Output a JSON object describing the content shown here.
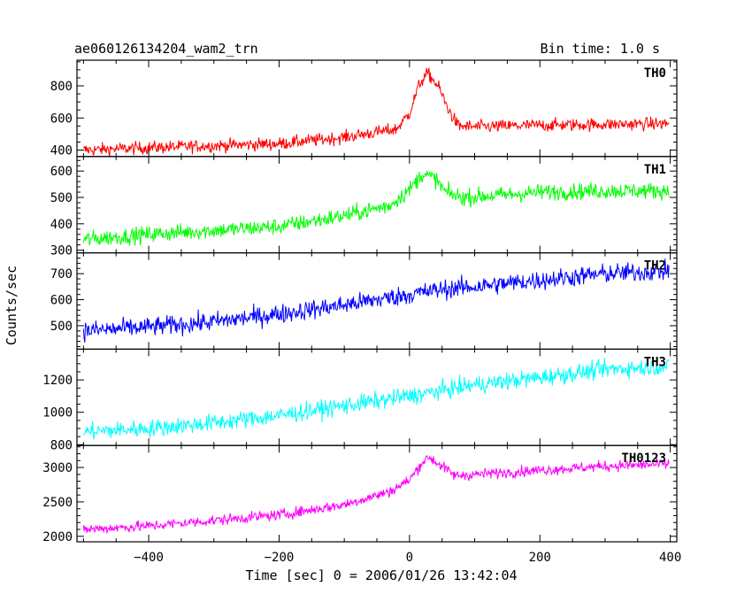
{
  "header": {
    "object_name": "ae060126134204_wam2_trn",
    "bin_time": "Bin time: 1.0 s"
  },
  "chart_data": {
    "type": "line",
    "xlabel": "Time [sec] 0 = 2006/01/26 13:42:04",
    "ylabel": "Counts/sec",
    "xlim": [
      -510,
      410
    ],
    "x_ticks": [
      -400,
      -200,
      0,
      200,
      400
    ],
    "x_tick_labels": [
      "−400",
      "−200",
      "0",
      "200",
      "400"
    ],
    "sample_step_sec": 1.0,
    "series_range": [
      -500,
      398
    ],
    "panels": [
      {
        "name": "TH0",
        "color": "#ff0000",
        "ylim": [
          360,
          960
        ],
        "y_ticks": [
          400,
          600,
          800
        ],
        "y_tick_labels": [
          "400",
          "600",
          "800"
        ],
        "noise": 28,
        "trend": [
          [
            -500,
            400
          ],
          [
            -400,
            415
          ],
          [
            -200,
            440
          ],
          [
            -100,
            480
          ],
          [
            -20,
            530
          ],
          [
            0,
            630
          ],
          [
            15,
            810
          ],
          [
            28,
            880
          ],
          [
            45,
            790
          ],
          [
            60,
            650
          ],
          [
            75,
            550
          ],
          [
            100,
            545
          ],
          [
            200,
            555
          ],
          [
            300,
            560
          ],
          [
            398,
            565
          ]
        ]
      },
      {
        "name": "TH1",
        "color": "#00ff00",
        "ylim": [
          290,
          655
        ],
        "y_ticks": [
          300,
          400,
          500,
          600
        ],
        "y_tick_labels": [
          "300",
          "400",
          "500",
          "600"
        ],
        "noise": 22,
        "trend": [
          [
            -500,
            340
          ],
          [
            -400,
            360
          ],
          [
            -200,
            390
          ],
          [
            -100,
            430
          ],
          [
            -30,
            470
          ],
          [
            0,
            530
          ],
          [
            20,
            590
          ],
          [
            40,
            570
          ],
          [
            55,
            520
          ],
          [
            80,
            500
          ],
          [
            150,
            510
          ],
          [
            200,
            520
          ],
          [
            300,
            525
          ],
          [
            398,
            525
          ]
        ]
      },
      {
        "name": "TH2",
        "color": "#0000ff",
        "ylim": [
          410,
          780
        ],
        "y_ticks": [
          500,
          600,
          700
        ],
        "y_tick_labels": [
          "500",
          "600",
          "700"
        ],
        "noise": 26,
        "trend": [
          [
            -500,
            480
          ],
          [
            -400,
            495
          ],
          [
            -300,
            515
          ],
          [
            -200,
            545
          ],
          [
            -100,
            580
          ],
          [
            0,
            620
          ],
          [
            50,
            640
          ],
          [
            100,
            650
          ],
          [
            200,
            675
          ],
          [
            300,
            700
          ],
          [
            398,
            710
          ]
        ]
      },
      {
        "name": "TH3",
        "color": "#00ffff",
        "ylim": [
          795,
          1390
        ],
        "y_ticks": [
          800,
          1000,
          1200
        ],
        "y_tick_labels": [
          "800",
          "1000",
          "1200"
        ],
        "noise": 38,
        "trend": [
          [
            -500,
            880
          ],
          [
            -400,
            900
          ],
          [
            -300,
            935
          ],
          [
            -200,
            980
          ],
          [
            -100,
            1040
          ],
          [
            0,
            1100
          ],
          [
            100,
            1170
          ],
          [
            200,
            1215
          ],
          [
            300,
            1265
          ],
          [
            398,
            1285
          ]
        ]
      },
      {
        "name": "TH0123",
        "color": "#ff00ff",
        "ylim": [
          1920,
          3320
        ],
        "y_ticks": [
          2000,
          2500,
          3000
        ],
        "y_tick_labels": [
          "2000",
          "2500",
          "3000"
        ],
        "noise": 55,
        "trend": [
          [
            -500,
            2100
          ],
          [
            -400,
            2150
          ],
          [
            -300,
            2230
          ],
          [
            -200,
            2310
          ],
          [
            -100,
            2460
          ],
          [
            -30,
            2650
          ],
          [
            0,
            2820
          ],
          [
            20,
            3080
          ],
          [
            30,
            3150
          ],
          [
            45,
            3050
          ],
          [
            70,
            2880
          ],
          [
            100,
            2900
          ],
          [
            200,
            2960
          ],
          [
            300,
            3020
          ],
          [
            398,
            3050
          ]
        ]
      }
    ]
  }
}
